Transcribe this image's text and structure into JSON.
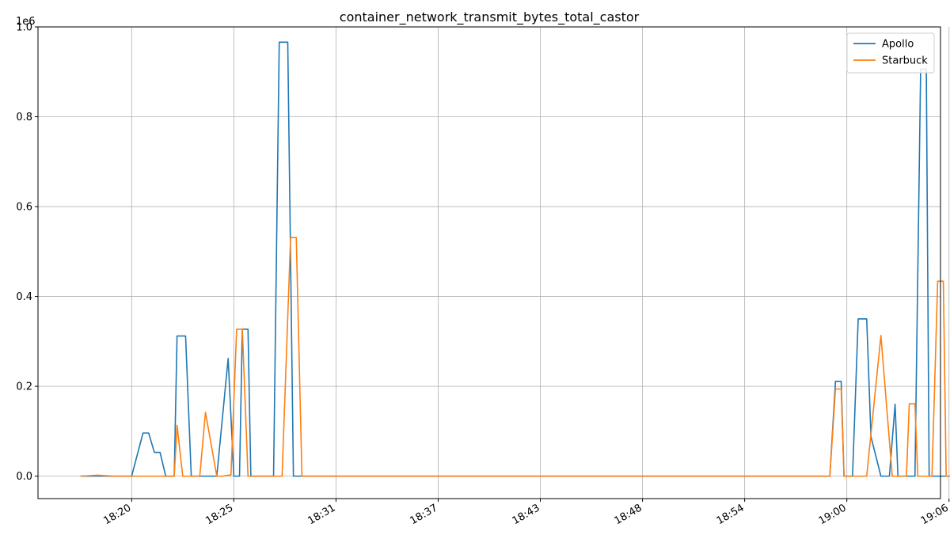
{
  "chart_data": {
    "type": "line",
    "title": "container_network_transmit_bytes_total_castor",
    "xlabel": "",
    "ylabel": "",
    "y_offset_label": "1e6",
    "ylim": [
      -0.05,
      1.0
    ],
    "y_ticks": [
      {
        "value": 0.0,
        "label": "0.0"
      },
      {
        "value": 0.2,
        "label": "0.2"
      },
      {
        "value": 0.4,
        "label": "0.4"
      },
      {
        "value": 0.6,
        "label": "0.6"
      },
      {
        "value": 0.8,
        "label": "0.8"
      },
      {
        "value": 1.0,
        "label": "1.0"
      }
    ],
    "xlim": [
      "18:14:00",
      "19:07:00"
    ],
    "x_ticks": [
      {
        "time": "18:19:30",
        "label": "18:20"
      },
      {
        "time": "18:25:30",
        "label": "18:25"
      },
      {
        "time": "18:31:30",
        "label": "18:31"
      },
      {
        "time": "18:37:30",
        "label": "18:37"
      },
      {
        "time": "18:43:30",
        "label": "18:43"
      },
      {
        "time": "18:49:30",
        "label": "18:48"
      },
      {
        "time": "18:55:30",
        "label": "18:54"
      },
      {
        "time": "19:01:30",
        "label": "19:00"
      },
      {
        "time": "19:07:30",
        "label": "19:06"
      }
    ],
    "grid": true,
    "legend_position": "top-right",
    "series": [
      {
        "name": "Apollo",
        "color": "#1f77b4",
        "points": [
          [
            "18:16:30",
            0.0
          ],
          [
            "18:19:30",
            0.0
          ],
          [
            "18:20:10",
            0.096
          ],
          [
            "18:20:30",
            0.096
          ],
          [
            "18:20:50",
            0.053
          ],
          [
            "18:21:10",
            0.053
          ],
          [
            "18:21:30",
            0.0
          ],
          [
            "18:22:00",
            0.0
          ],
          [
            "18:22:10",
            0.312
          ],
          [
            "18:22:40",
            0.312
          ],
          [
            "18:23:00",
            0.0
          ],
          [
            "18:24:10",
            0.0
          ],
          [
            "18:24:30",
            0.0
          ],
          [
            "18:25:10",
            0.262
          ],
          [
            "18:25:30",
            0.0
          ],
          [
            "18:25:50",
            0.0
          ],
          [
            "18:26:00",
            0.327
          ],
          [
            "18:26:20",
            0.327
          ],
          [
            "18:26:30",
            0.0
          ],
          [
            "18:27:50",
            0.0
          ],
          [
            "18:28:10",
            0.966
          ],
          [
            "18:28:40",
            0.966
          ],
          [
            "18:29:00",
            0.0
          ],
          [
            "19:00:30",
            0.0
          ],
          [
            "19:00:50",
            0.211
          ],
          [
            "19:01:10",
            0.211
          ],
          [
            "19:01:20",
            0.0
          ],
          [
            "19:01:50",
            0.0
          ],
          [
            "19:02:10",
            0.35
          ],
          [
            "19:02:40",
            0.35
          ],
          [
            "19:02:55",
            0.088
          ],
          [
            "19:03:30",
            0.0
          ],
          [
            "19:04:00",
            0.0
          ],
          [
            "19:04:20",
            0.16
          ],
          [
            "19:04:30",
            0.0
          ],
          [
            "19:05:30",
            0.0
          ],
          [
            "19:05:50",
            0.906
          ],
          [
            "19:06:10",
            0.906
          ],
          [
            "19:06:20",
            0.0
          ],
          [
            "19:08:00",
            0.0
          ],
          [
            "19:08:10",
            0.273
          ]
        ]
      },
      {
        "name": "Starbuck",
        "color": "#ff7f0e",
        "points": [
          [
            "18:16:30",
            0.0
          ],
          [
            "18:17:30",
            0.002
          ],
          [
            "18:18:30",
            0.0
          ],
          [
            "18:19:30",
            0.0
          ],
          [
            "18:21:30",
            0.0
          ],
          [
            "18:22:00",
            0.0
          ],
          [
            "18:22:10",
            0.113
          ],
          [
            "18:22:30",
            0.0
          ],
          [
            "18:23:30",
            0.0
          ],
          [
            "18:23:50",
            0.142
          ],
          [
            "18:24:30",
            0.0
          ],
          [
            "18:24:50",
            0.0
          ],
          [
            "18:25:20",
            0.003
          ],
          [
            "18:25:40",
            0.327
          ],
          [
            "18:26:00",
            0.327
          ],
          [
            "18:26:20",
            0.0
          ],
          [
            "18:28:20",
            0.0
          ],
          [
            "18:28:50",
            0.531
          ],
          [
            "18:29:10",
            0.531
          ],
          [
            "18:29:30",
            0.0
          ],
          [
            "19:00:30",
            0.0
          ],
          [
            "19:00:50",
            0.194
          ],
          [
            "19:01:10",
            0.194
          ],
          [
            "19:01:20",
            0.0
          ],
          [
            "19:02:40",
            0.0
          ],
          [
            "19:03:30",
            0.313
          ],
          [
            "19:04:10",
            0.0
          ],
          [
            "19:05:00",
            0.0
          ],
          [
            "19:05:10",
            0.161
          ],
          [
            "19:05:30",
            0.161
          ],
          [
            "19:05:40",
            0.0
          ],
          [
            "19:06:30",
            0.0
          ],
          [
            "19:06:50",
            0.434
          ],
          [
            "19:07:10",
            0.434
          ],
          [
            "19:07:20",
            0.0
          ],
          [
            "19:08:00",
            0.0
          ],
          [
            "19:08:10",
            0.434
          ]
        ]
      }
    ]
  }
}
